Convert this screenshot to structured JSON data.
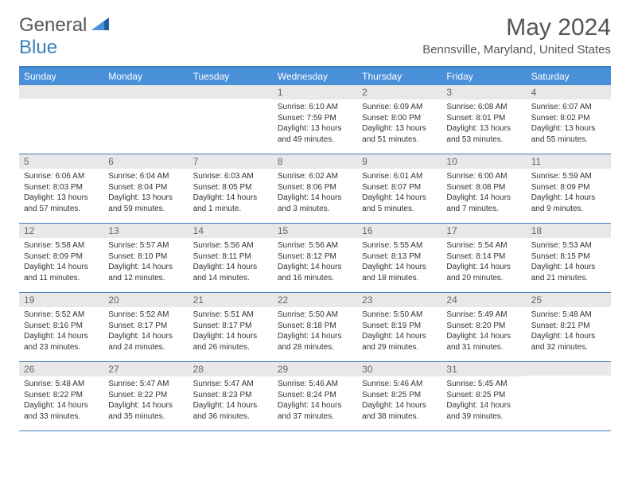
{
  "logo": {
    "text1": "General",
    "text2": "Blue"
  },
  "title": "May 2024",
  "location": "Bennsville, Maryland, United States",
  "weekdays": [
    "Sunday",
    "Monday",
    "Tuesday",
    "Wednesday",
    "Thursday",
    "Friday",
    "Saturday"
  ],
  "colors": {
    "header_bar": "#4a90d9",
    "border": "#3a7fc0",
    "daynum_bg": "#e8e8e8",
    "text": "#333333",
    "muted": "#666666"
  },
  "weeks": [
    [
      {
        "blank": true
      },
      {
        "blank": true
      },
      {
        "blank": true
      },
      {
        "n": "1",
        "sr": "6:10 AM",
        "ss": "7:59 PM",
        "dl": "13 hours and 49 minutes."
      },
      {
        "n": "2",
        "sr": "6:09 AM",
        "ss": "8:00 PM",
        "dl": "13 hours and 51 minutes."
      },
      {
        "n": "3",
        "sr": "6:08 AM",
        "ss": "8:01 PM",
        "dl": "13 hours and 53 minutes."
      },
      {
        "n": "4",
        "sr": "6:07 AM",
        "ss": "8:02 PM",
        "dl": "13 hours and 55 minutes."
      }
    ],
    [
      {
        "n": "5",
        "sr": "6:06 AM",
        "ss": "8:03 PM",
        "dl": "13 hours and 57 minutes."
      },
      {
        "n": "6",
        "sr": "6:04 AM",
        "ss": "8:04 PM",
        "dl": "13 hours and 59 minutes."
      },
      {
        "n": "7",
        "sr": "6:03 AM",
        "ss": "8:05 PM",
        "dl": "14 hours and 1 minute."
      },
      {
        "n": "8",
        "sr": "6:02 AM",
        "ss": "8:06 PM",
        "dl": "14 hours and 3 minutes."
      },
      {
        "n": "9",
        "sr": "6:01 AM",
        "ss": "8:07 PM",
        "dl": "14 hours and 5 minutes."
      },
      {
        "n": "10",
        "sr": "6:00 AM",
        "ss": "8:08 PM",
        "dl": "14 hours and 7 minutes."
      },
      {
        "n": "11",
        "sr": "5:59 AM",
        "ss": "8:09 PM",
        "dl": "14 hours and 9 minutes."
      }
    ],
    [
      {
        "n": "12",
        "sr": "5:58 AM",
        "ss": "8:09 PM",
        "dl": "14 hours and 11 minutes."
      },
      {
        "n": "13",
        "sr": "5:57 AM",
        "ss": "8:10 PM",
        "dl": "14 hours and 12 minutes."
      },
      {
        "n": "14",
        "sr": "5:56 AM",
        "ss": "8:11 PM",
        "dl": "14 hours and 14 minutes."
      },
      {
        "n": "15",
        "sr": "5:56 AM",
        "ss": "8:12 PM",
        "dl": "14 hours and 16 minutes."
      },
      {
        "n": "16",
        "sr": "5:55 AM",
        "ss": "8:13 PM",
        "dl": "14 hours and 18 minutes."
      },
      {
        "n": "17",
        "sr": "5:54 AM",
        "ss": "8:14 PM",
        "dl": "14 hours and 20 minutes."
      },
      {
        "n": "18",
        "sr": "5:53 AM",
        "ss": "8:15 PM",
        "dl": "14 hours and 21 minutes."
      }
    ],
    [
      {
        "n": "19",
        "sr": "5:52 AM",
        "ss": "8:16 PM",
        "dl": "14 hours and 23 minutes."
      },
      {
        "n": "20",
        "sr": "5:52 AM",
        "ss": "8:17 PM",
        "dl": "14 hours and 24 minutes."
      },
      {
        "n": "21",
        "sr": "5:51 AM",
        "ss": "8:17 PM",
        "dl": "14 hours and 26 minutes."
      },
      {
        "n": "22",
        "sr": "5:50 AM",
        "ss": "8:18 PM",
        "dl": "14 hours and 28 minutes."
      },
      {
        "n": "23",
        "sr": "5:50 AM",
        "ss": "8:19 PM",
        "dl": "14 hours and 29 minutes."
      },
      {
        "n": "24",
        "sr": "5:49 AM",
        "ss": "8:20 PM",
        "dl": "14 hours and 31 minutes."
      },
      {
        "n": "25",
        "sr": "5:48 AM",
        "ss": "8:21 PM",
        "dl": "14 hours and 32 minutes."
      }
    ],
    [
      {
        "n": "26",
        "sr": "5:48 AM",
        "ss": "8:22 PM",
        "dl": "14 hours and 33 minutes."
      },
      {
        "n": "27",
        "sr": "5:47 AM",
        "ss": "8:22 PM",
        "dl": "14 hours and 35 minutes."
      },
      {
        "n": "28",
        "sr": "5:47 AM",
        "ss": "8:23 PM",
        "dl": "14 hours and 36 minutes."
      },
      {
        "n": "29",
        "sr": "5:46 AM",
        "ss": "8:24 PM",
        "dl": "14 hours and 37 minutes."
      },
      {
        "n": "30",
        "sr": "5:46 AM",
        "ss": "8:25 PM",
        "dl": "14 hours and 38 minutes."
      },
      {
        "n": "31",
        "sr": "5:45 AM",
        "ss": "8:25 PM",
        "dl": "14 hours and 39 minutes."
      },
      {
        "blank": true
      }
    ]
  ],
  "labels": {
    "sunrise": "Sunrise:",
    "sunset": "Sunset:",
    "daylight": "Daylight:"
  }
}
